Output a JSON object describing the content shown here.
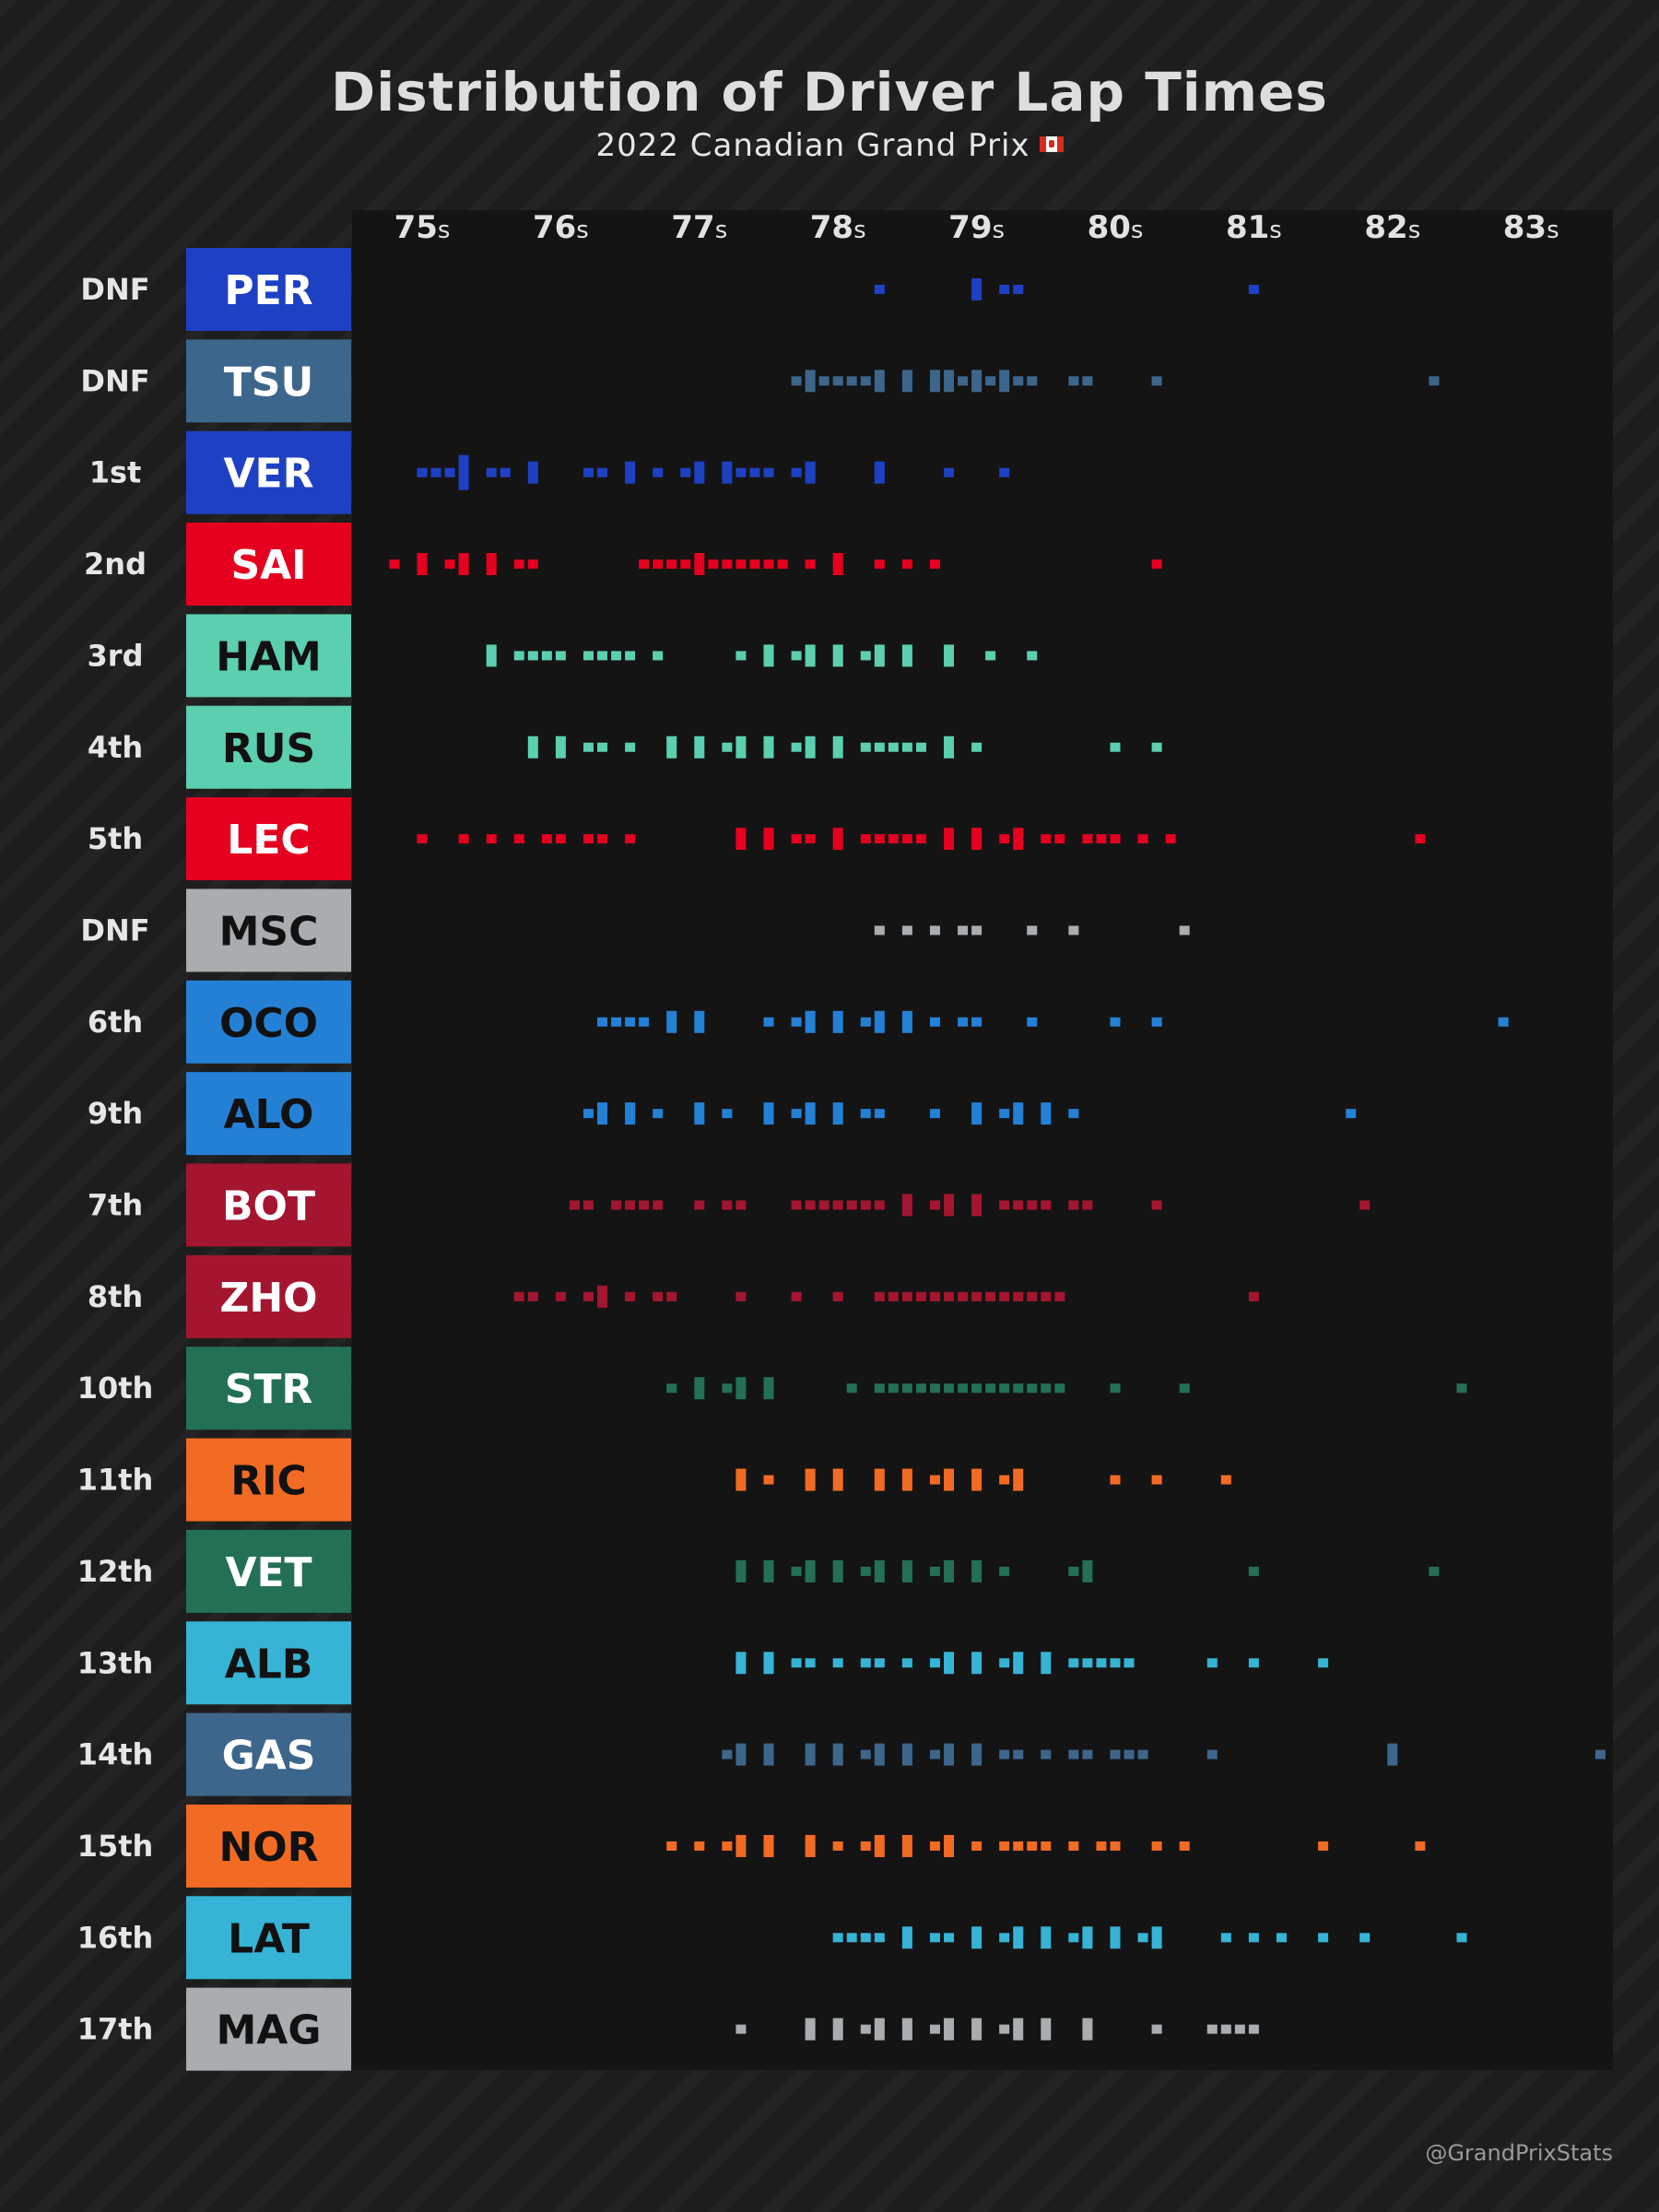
{
  "chart_data": {
    "type": "strip",
    "title": "Distribution of Driver Lap Times",
    "subtitle": "2022 Canadian Grand Prix",
    "flag_icon": "canada-flag-icon",
    "credit": "@GrandPrixStats",
    "x_ticks": [
      75,
      76,
      77,
      78,
      79,
      80,
      81,
      82,
      83
    ],
    "x_unit": "s",
    "x_range": [
      74.8,
      83.3
    ],
    "colors": {
      "background": "#1d1d1d",
      "panel": "#141414"
    },
    "drivers": [
      {
        "code": "PER",
        "position": "DNF",
        "color": "#1e41c3",
        "label_color": "#ffffff",
        "laps": [
          78.25,
          78.95,
          79.0,
          79.15,
          79.25,
          81.05
        ]
      },
      {
        "code": "TSU",
        "position": "DNF",
        "color": "#3d668c",
        "label_color": "#ffffff",
        "laps": [
          77.7,
          77.8,
          77.85,
          77.9,
          78.0,
          78.1,
          78.2,
          78.3,
          78.35,
          78.45,
          78.55,
          78.65,
          78.7,
          78.75,
          78.85,
          78.9,
          78.95,
          79.05,
          79.1,
          79.15,
          79.2,
          79.3,
          79.4,
          79.7,
          79.8,
          80.25,
          82.35
        ]
      },
      {
        "code": "VER",
        "position": "1st",
        "color": "#1e41c3",
        "label_color": "#ffffff",
        "laps": [
          74.95,
          75.1,
          75.15,
          75.25,
          75.3,
          75.35,
          75.5,
          75.6,
          75.75,
          75.8,
          76.2,
          76.3,
          76.45,
          76.5,
          76.65,
          76.9,
          77.0,
          77.05,
          77.15,
          77.2,
          77.35,
          77.4,
          77.55,
          77.65,
          77.75,
          77.85,
          78.3,
          78.35,
          78.85,
          79.2
        ]
      },
      {
        "code": "SAI",
        "position": "2nd",
        "color": "#e5001f",
        "label_color": "#ffffff",
        "laps": [
          74.85,
          74.95,
          75.05,
          75.15,
          75.25,
          75.35,
          75.45,
          75.55,
          75.65,
          75.75,
          76.6,
          76.65,
          76.8,
          76.9,
          77.0,
          77.05,
          77.1,
          77.2,
          77.3,
          77.4,
          77.5,
          77.6,
          77.8,
          77.95,
          78.05,
          78.35,
          78.45,
          78.65,
          80.25
        ]
      },
      {
        "code": "HAM",
        "position": "3rd",
        "color": "#5ccfaf",
        "label_color": "#111111",
        "laps": [
          75.45,
          75.55,
          75.65,
          75.75,
          75.9,
          76.0,
          76.15,
          76.3,
          76.4,
          76.55,
          76.65,
          77.35,
          77.45,
          77.55,
          77.65,
          77.75,
          77.85,
          77.95,
          78.05,
          78.15,
          78.25,
          78.35,
          78.45,
          78.55,
          78.75,
          78.85,
          79.1,
          79.4
        ]
      },
      {
        "code": "RUS",
        "position": "4th",
        "color": "#5ccfaf",
        "label_color": "#111111",
        "laps": [
          75.75,
          75.85,
          75.95,
          76.05,
          76.15,
          76.35,
          76.55,
          76.75,
          76.85,
          76.95,
          77.05,
          77.15,
          77.25,
          77.35,
          77.45,
          77.55,
          77.65,
          77.75,
          77.85,
          77.95,
          78.05,
          78.2,
          78.3,
          78.4,
          78.5,
          78.6,
          78.75,
          78.85,
          79.0,
          79.95,
          80.25
        ]
      },
      {
        "code": "LEC",
        "position": "5th",
        "color": "#e5001f",
        "label_color": "#ffffff",
        "laps": [
          75.05,
          75.25,
          75.5,
          75.65,
          75.9,
          76.05,
          76.2,
          76.35,
          76.55,
          77.25,
          77.35,
          77.45,
          77.55,
          77.65,
          77.85,
          77.95,
          78.05,
          78.15,
          78.3,
          78.4,
          78.5,
          78.6,
          78.75,
          78.85,
          78.95,
          79.05,
          79.15,
          79.25,
          79.35,
          79.45,
          79.6,
          79.75,
          79.9,
          80.0,
          80.15,
          80.4,
          82.15
        ]
      },
      {
        "code": "MSC",
        "position": "DNF",
        "color": "#a9adb0",
        "label_color": "#111111",
        "laps": [
          78.35,
          78.55,
          78.65,
          78.9,
          79.05,
          79.4,
          79.65,
          80.45
        ]
      },
      {
        "code": "OCO",
        "position": "6th",
        "color": "#2480d5",
        "label_color": "#111111",
        "laps": [
          76.3,
          76.4,
          76.5,
          76.6,
          76.75,
          76.85,
          76.95,
          77.05,
          77.45,
          77.65,
          77.75,
          77.85,
          77.95,
          78.05,
          78.15,
          78.25,
          78.35,
          78.45,
          78.55,
          78.65,
          78.9,
          79.0,
          79.4,
          79.95,
          80.3,
          82.8
        ]
      },
      {
        "code": "ALO",
        "position": "9th",
        "color": "#2480d5",
        "label_color": "#111111",
        "laps": [
          76.15,
          76.25,
          76.35,
          76.45,
          76.55,
          76.7,
          76.95,
          77.05,
          77.15,
          77.45,
          77.55,
          77.65,
          77.75,
          77.85,
          77.95,
          78.05,
          78.15,
          78.35,
          78.7,
          78.95,
          79.05,
          79.15,
          79.25,
          79.35,
          79.45,
          79.55,
          79.7,
          81.7
        ]
      },
      {
        "code": "BOT",
        "position": "7th",
        "color": "#a4162f",
        "label_color": "#ffffff",
        "laps": [
          76.1,
          76.2,
          76.4,
          76.5,
          76.6,
          76.7,
          76.95,
          77.15,
          77.35,
          77.7,
          77.8,
          77.9,
          78.0,
          78.1,
          78.2,
          78.3,
          78.45,
          78.55,
          78.65,
          78.75,
          78.85,
          78.95,
          79.05,
          79.15,
          79.3,
          79.4,
          79.55,
          79.65,
          79.75,
          80.25,
          81.85
        ]
      },
      {
        "code": "ZHO",
        "position": "8th",
        "color": "#a4162f",
        "label_color": "#ffffff",
        "laps": [
          75.65,
          75.85,
          76.05,
          76.15,
          76.25,
          76.35,
          76.45,
          76.65,
          76.85,
          77.25,
          77.7,
          77.95,
          78.3,
          78.4,
          78.5,
          78.6,
          78.7,
          78.8,
          78.9,
          79.0,
          79.1,
          79.2,
          79.3,
          79.4,
          79.5,
          79.6,
          81.0
        ]
      },
      {
        "code": "STR",
        "position": "10th",
        "color": "#237055",
        "label_color": "#ffffff",
        "laps": [
          76.85,
          76.95,
          77.05,
          77.15,
          77.25,
          77.35,
          77.45,
          77.55,
          78.1,
          78.3,
          78.4,
          78.5,
          78.6,
          78.7,
          78.8,
          78.9,
          79.0,
          79.1,
          79.2,
          79.3,
          79.4,
          79.5,
          79.6,
          80.0,
          80.45,
          82.5
        ]
      },
      {
        "code": "RIC",
        "position": "11th",
        "color": "#f26b24",
        "label_color": "#111111",
        "laps": [
          77.25,
          77.35,
          77.45,
          77.75,
          77.85,
          77.95,
          78.05,
          78.25,
          78.35,
          78.45,
          78.55,
          78.65,
          78.75,
          78.85,
          78.95,
          79.05,
          79.15,
          79.25,
          79.35,
          80.0,
          80.25,
          80.85
        ]
      },
      {
        "code": "VET",
        "position": "12th",
        "color": "#237055",
        "label_color": "#ffffff",
        "laps": [
          77.25,
          77.35,
          77.45,
          77.55,
          77.65,
          77.75,
          77.85,
          77.95,
          78.05,
          78.15,
          78.25,
          78.35,
          78.45,
          78.55,
          78.65,
          78.75,
          78.85,
          78.95,
          79.05,
          79.15,
          79.65,
          79.75,
          79.85,
          81.0,
          82.35
        ]
      },
      {
        "code": "ALB",
        "position": "13th",
        "color": "#37b3d6",
        "label_color": "#111111",
        "laps": [
          77.25,
          77.35,
          77.45,
          77.55,
          77.7,
          77.8,
          77.95,
          78.15,
          78.35,
          78.55,
          78.65,
          78.75,
          78.85,
          78.95,
          79.05,
          79.15,
          79.25,
          79.35,
          79.45,
          79.55,
          79.65,
          79.75,
          79.9,
          80.0,
          80.1,
          80.7,
          81.05,
          81.5
        ]
      },
      {
        "code": "GAS",
        "position": "14th",
        "color": "#3d668c",
        "label_color": "#ffffff",
        "laps": [
          77.15,
          77.25,
          77.35,
          77.45,
          77.55,
          77.75,
          77.85,
          77.95,
          78.05,
          78.15,
          78.25,
          78.35,
          78.45,
          78.55,
          78.65,
          78.75,
          78.85,
          78.95,
          79.05,
          79.15,
          79.25,
          79.45,
          79.65,
          79.75,
          80.0,
          80.1,
          80.2,
          80.7,
          81.95,
          82.05,
          83.45
        ]
      },
      {
        "code": "NOR",
        "position": "15th",
        "color": "#f26b24",
        "label_color": "#111111",
        "laps": [
          76.85,
          77.05,
          77.15,
          77.25,
          77.35,
          77.45,
          77.55,
          77.75,
          77.85,
          78.05,
          78.15,
          78.25,
          78.35,
          78.45,
          78.55,
          78.65,
          78.75,
          78.85,
          78.95,
          79.2,
          79.3,
          79.4,
          79.5,
          79.7,
          79.9,
          80.0,
          80.25,
          80.45,
          81.55,
          82.15
        ]
      },
      {
        "code": "LAT",
        "position": "16th",
        "color": "#37b3d6",
        "label_color": "#111111",
        "laps": [
          77.95,
          78.1,
          78.2,
          78.3,
          78.45,
          78.55,
          78.65,
          78.75,
          78.95,
          79.05,
          79.15,
          79.25,
          79.35,
          79.45,
          79.55,
          79.65,
          79.75,
          79.85,
          79.95,
          80.05,
          80.15,
          80.25,
          80.35,
          80.85,
          80.95,
          81.2,
          81.5,
          81.75,
          82.5
        ]
      },
      {
        "code": "MAG",
        "position": "17th",
        "color": "#a9adb0",
        "label_color": "#111111",
        "laps": [
          77.35,
          77.75,
          77.85,
          77.95,
          78.05,
          78.15,
          78.25,
          78.35,
          78.45,
          78.55,
          78.65,
          78.75,
          78.85,
          78.95,
          79.05,
          79.15,
          79.25,
          79.35,
          79.45,
          79.55,
          79.75,
          79.85,
          80.25,
          80.7,
          80.8,
          80.9,
          81.0
        ]
      }
    ]
  }
}
